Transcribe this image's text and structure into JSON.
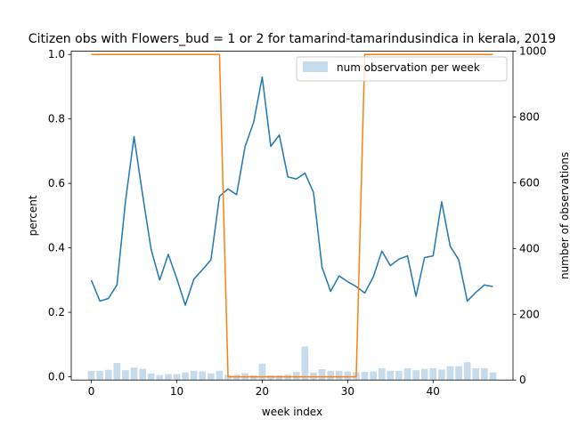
{
  "chart_data": {
    "type": "line",
    "title": "Citizen obs with Flowers_bud = 1 or 2 for tamarind-tamarindusindica in kerala, 2019",
    "xlabel": "week index",
    "ylabel": "percent",
    "y2label": "number of observations",
    "xlim": [
      -2.35,
      49.35
    ],
    "ylim": [
      -0.01,
      1.01
    ],
    "y2lim": [
      0,
      1000
    ],
    "xticks": [
      "0",
      "10",
      "20",
      "30",
      "40"
    ],
    "yticks": [
      "0.0",
      "0.2",
      "0.4",
      "0.6",
      "0.8",
      "1.0"
    ],
    "y2ticks": [
      "0",
      "200",
      "400",
      "600",
      "800",
      "1000"
    ],
    "grid": false,
    "legend_position": "top-right",
    "series": [
      {
        "color": "#1f77b4",
        "x": [
          0,
          1,
          2,
          3,
          4,
          5,
          6,
          7,
          8,
          9,
          10,
          11,
          12,
          13,
          14,
          15,
          16,
          17,
          18,
          19,
          20,
          21,
          22,
          23,
          24,
          25,
          26,
          27,
          28,
          29,
          30,
          31,
          32,
          33,
          34,
          35,
          36,
          37,
          38,
          39,
          40,
          41,
          42,
          43,
          44,
          45,
          46,
          47
        ],
        "values": [
          0.3,
          0.235,
          0.243,
          0.285,
          0.545,
          0.745,
          0.565,
          0.395,
          0.3,
          0.38,
          0.305,
          0.222,
          0.303,
          0.332,
          0.363,
          0.56,
          0.583,
          0.565,
          0.715,
          0.79,
          0.93,
          0.715,
          0.75,
          0.62,
          0.614,
          0.632,
          0.572,
          0.34,
          0.265,
          0.313,
          0.295,
          0.28,
          0.26,
          0.31,
          0.39,
          0.345,
          0.365,
          0.375,
          0.25,
          0.37,
          0.375,
          0.543,
          0.405,
          0.363,
          0.235,
          0.262,
          0.285,
          0.28
        ]
      },
      {
        "color": "#ff7f0e",
        "x": [
          0,
          1,
          2,
          3,
          4,
          5,
          6,
          7,
          8,
          9,
          10,
          11,
          12,
          13,
          14,
          15,
          16,
          17,
          18,
          19,
          20,
          21,
          22,
          23,
          24,
          25,
          26,
          27,
          28,
          29,
          30,
          31,
          32,
          33,
          34,
          35,
          36,
          37,
          38,
          39,
          40,
          41,
          42,
          43,
          44,
          45,
          46,
          47
        ],
        "values": [
          1,
          1,
          1,
          1,
          1,
          1,
          1,
          1,
          1,
          1,
          1,
          1,
          1,
          1,
          1,
          1,
          0,
          0,
          0,
          0,
          0,
          0,
          0,
          0,
          0,
          0,
          0,
          0,
          0,
          0,
          0,
          0,
          1,
          1,
          1,
          1,
          1,
          1,
          1,
          1,
          1,
          1,
          1,
          1,
          1,
          1,
          1,
          1
        ]
      },
      {
        "name": "num observation per week",
        "type": "bar",
        "axis": "right",
        "color": "#c6dcec",
        "x": [
          0,
          1,
          2,
          3,
          4,
          5,
          6,
          7,
          8,
          9,
          10,
          11,
          12,
          13,
          14,
          15,
          16,
          17,
          18,
          19,
          20,
          21,
          22,
          23,
          24,
          25,
          26,
          27,
          28,
          29,
          30,
          31,
          32,
          33,
          34,
          35,
          36,
          37,
          38,
          39,
          40,
          41,
          42,
          43,
          44,
          45,
          46,
          47
        ],
        "values": [
          28,
          28,
          31,
          52,
          30,
          38,
          34,
          20,
          15,
          18,
          18,
          23,
          28,
          26,
          20,
          28,
          16,
          16,
          21,
          14,
          50,
          14,
          14,
          16,
          25,
          102,
          23,
          33,
          28,
          28,
          26,
          24,
          25,
          26,
          36,
          28,
          28,
          36,
          30,
          34,
          36,
          32,
          42,
          42,
          54,
          36,
          36,
          23
        ]
      }
    ]
  }
}
